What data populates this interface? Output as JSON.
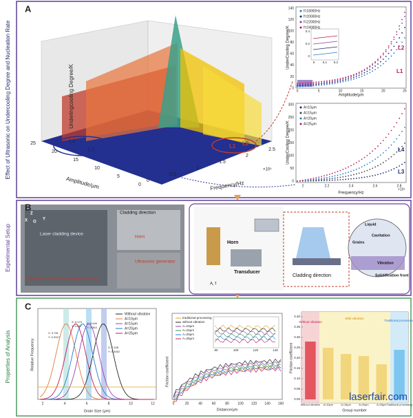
{
  "sidebar": {
    "panel_a": "Effect of Ultrasonic on Undercooling Degree and Nucleation Rate",
    "panel_b": "Experimental Setup",
    "panel_c": "Properties of Analysis"
  },
  "panel_a": {
    "label": "A",
    "surface_plot": {
      "z_label": "Underingcooling Degree/K",
      "x_label": "Frequency/Hz",
      "y_label": "Amplitude/μm",
      "x_exponent": "×10⁴",
      "x_ticks": [
        "0",
        "0.5",
        "1",
        "1.5",
        "2",
        "2.5"
      ],
      "y_ticks": [
        "25",
        "20",
        "15",
        "10",
        "5",
        "0"
      ],
      "annotations": [
        "L4",
        "L3",
        "L1",
        "L2"
      ]
    },
    "top_chart": {
      "y_label": "UnderCooling Degree/K",
      "x_label": "Amplitude/μm",
      "y_ticks": [
        "140",
        "120",
        "100",
        "80",
        "60",
        "40",
        "20",
        "0"
      ],
      "x_ticks": [
        "0",
        "5",
        "10",
        "15",
        "20",
        "25"
      ],
      "legend": [
        "f=18000Hz",
        "f=20000Hz",
        "f=22000Hz",
        "f=24000Hz"
      ],
      "inset_y_ticks": [
        "0.4",
        "0.2",
        "0"
      ],
      "inset_x_ticks": [
        "5",
        "5.1",
        "5.2"
      ],
      "annotations": [
        "L2",
        "L1"
      ]
    },
    "bottom_chart": {
      "y_label": "UnderCooling Degree/K",
      "x_label": "Frequency/Hz",
      "x_exponent": "×10⁴",
      "y_ticks": [
        "300",
        "250",
        "200",
        "150",
        "100",
        "50",
        "0"
      ],
      "x_ticks": [
        "2",
        "2.2",
        "2.4",
        "2.6",
        "2.8"
      ],
      "legend": [
        "A=10μm",
        "A=15μm",
        "A=20μm",
        "A=25μm"
      ],
      "annotations": [
        "L4",
        "L3"
      ]
    }
  },
  "panel_b": {
    "label": "B",
    "photo": {
      "axes": [
        "Z",
        "Y",
        "X",
        "O"
      ],
      "labels": [
        "Laser cladding device",
        "Cladding direction",
        "Horn",
        "Ultrasonic generator",
        "Ultrasonic vibration generator system"
      ]
    },
    "schematic": {
      "labels": [
        "Horn",
        "Transducer",
        "A, f",
        "Cladding direction",
        "Liquid",
        "Cavitation",
        "Grains",
        "Vibration",
        "Solidification front"
      ]
    }
  },
  "panel_c": {
    "label": "C",
    "grain_chart": {
      "y_label": "Relative Frequency",
      "x_label": "Grain Size (μm)",
      "x_ticks": [
        "2",
        "4",
        "6",
        "8",
        "10",
        "12"
      ],
      "legend": [
        "Without vibration",
        "A=10μm",
        "A=15μm",
        "A=20μm",
        "A=25μm"
      ],
      "annotations": [
        "X: 3.781",
        "Y: 0.3317",
        "X: 5.173",
        "Y: 0.447",
        "X: 5.449",
        "Y: 0.363",
        "X: 7.208",
        "Y: 0.3052"
      ]
    },
    "friction_chart": {
      "y_label": "Friction coefficient",
      "x_label": "Distance/μm",
      "x_ticks": [
        "0",
        "20",
        "40",
        "60",
        "80",
        "100",
        "120",
        "140",
        "160"
      ],
      "legend": [
        "traditional processing",
        "without vibration",
        "A=10μm",
        "A=15μm",
        "A=20μm",
        "A=25μm"
      ],
      "inset_x_ticks": [
        "80",
        "100",
        "120",
        "140"
      ]
    },
    "bar_chart": {
      "y_label": "Friction coefficient",
      "x_label": "Group number",
      "categories": [
        "Without vibration",
        "A=10μm",
        "A=15μm",
        "A=20μm",
        "A=25μm",
        "Traditional processing"
      ],
      "values": [
        0.28,
        0.25,
        0.22,
        0.21,
        0.17,
        0.24
      ],
      "ylim": [
        0,
        0.4
      ],
      "yticks": [
        {
          "value": 0,
          "label": "0.00"
        },
        {
          "value": 0.05,
          "label": "0.05"
        },
        {
          "value": 0.1,
          "label": "0.10"
        },
        {
          "value": 0.15,
          "label": "0.15"
        },
        {
          "value": 0.2,
          "label": "0.20"
        },
        {
          "value": 0.25,
          "label": "0.25"
        },
        {
          "value": 0.3,
          "label": "0.30"
        },
        {
          "value": 0.35,
          "label": "0.35"
        },
        {
          "value": 0.4,
          "label": "0.40"
        }
      ],
      "annotations": [
        "Without vibration",
        "With vibration",
        "Traditional processing"
      ]
    },
    "watermark": "laserfair.com"
  }
}
